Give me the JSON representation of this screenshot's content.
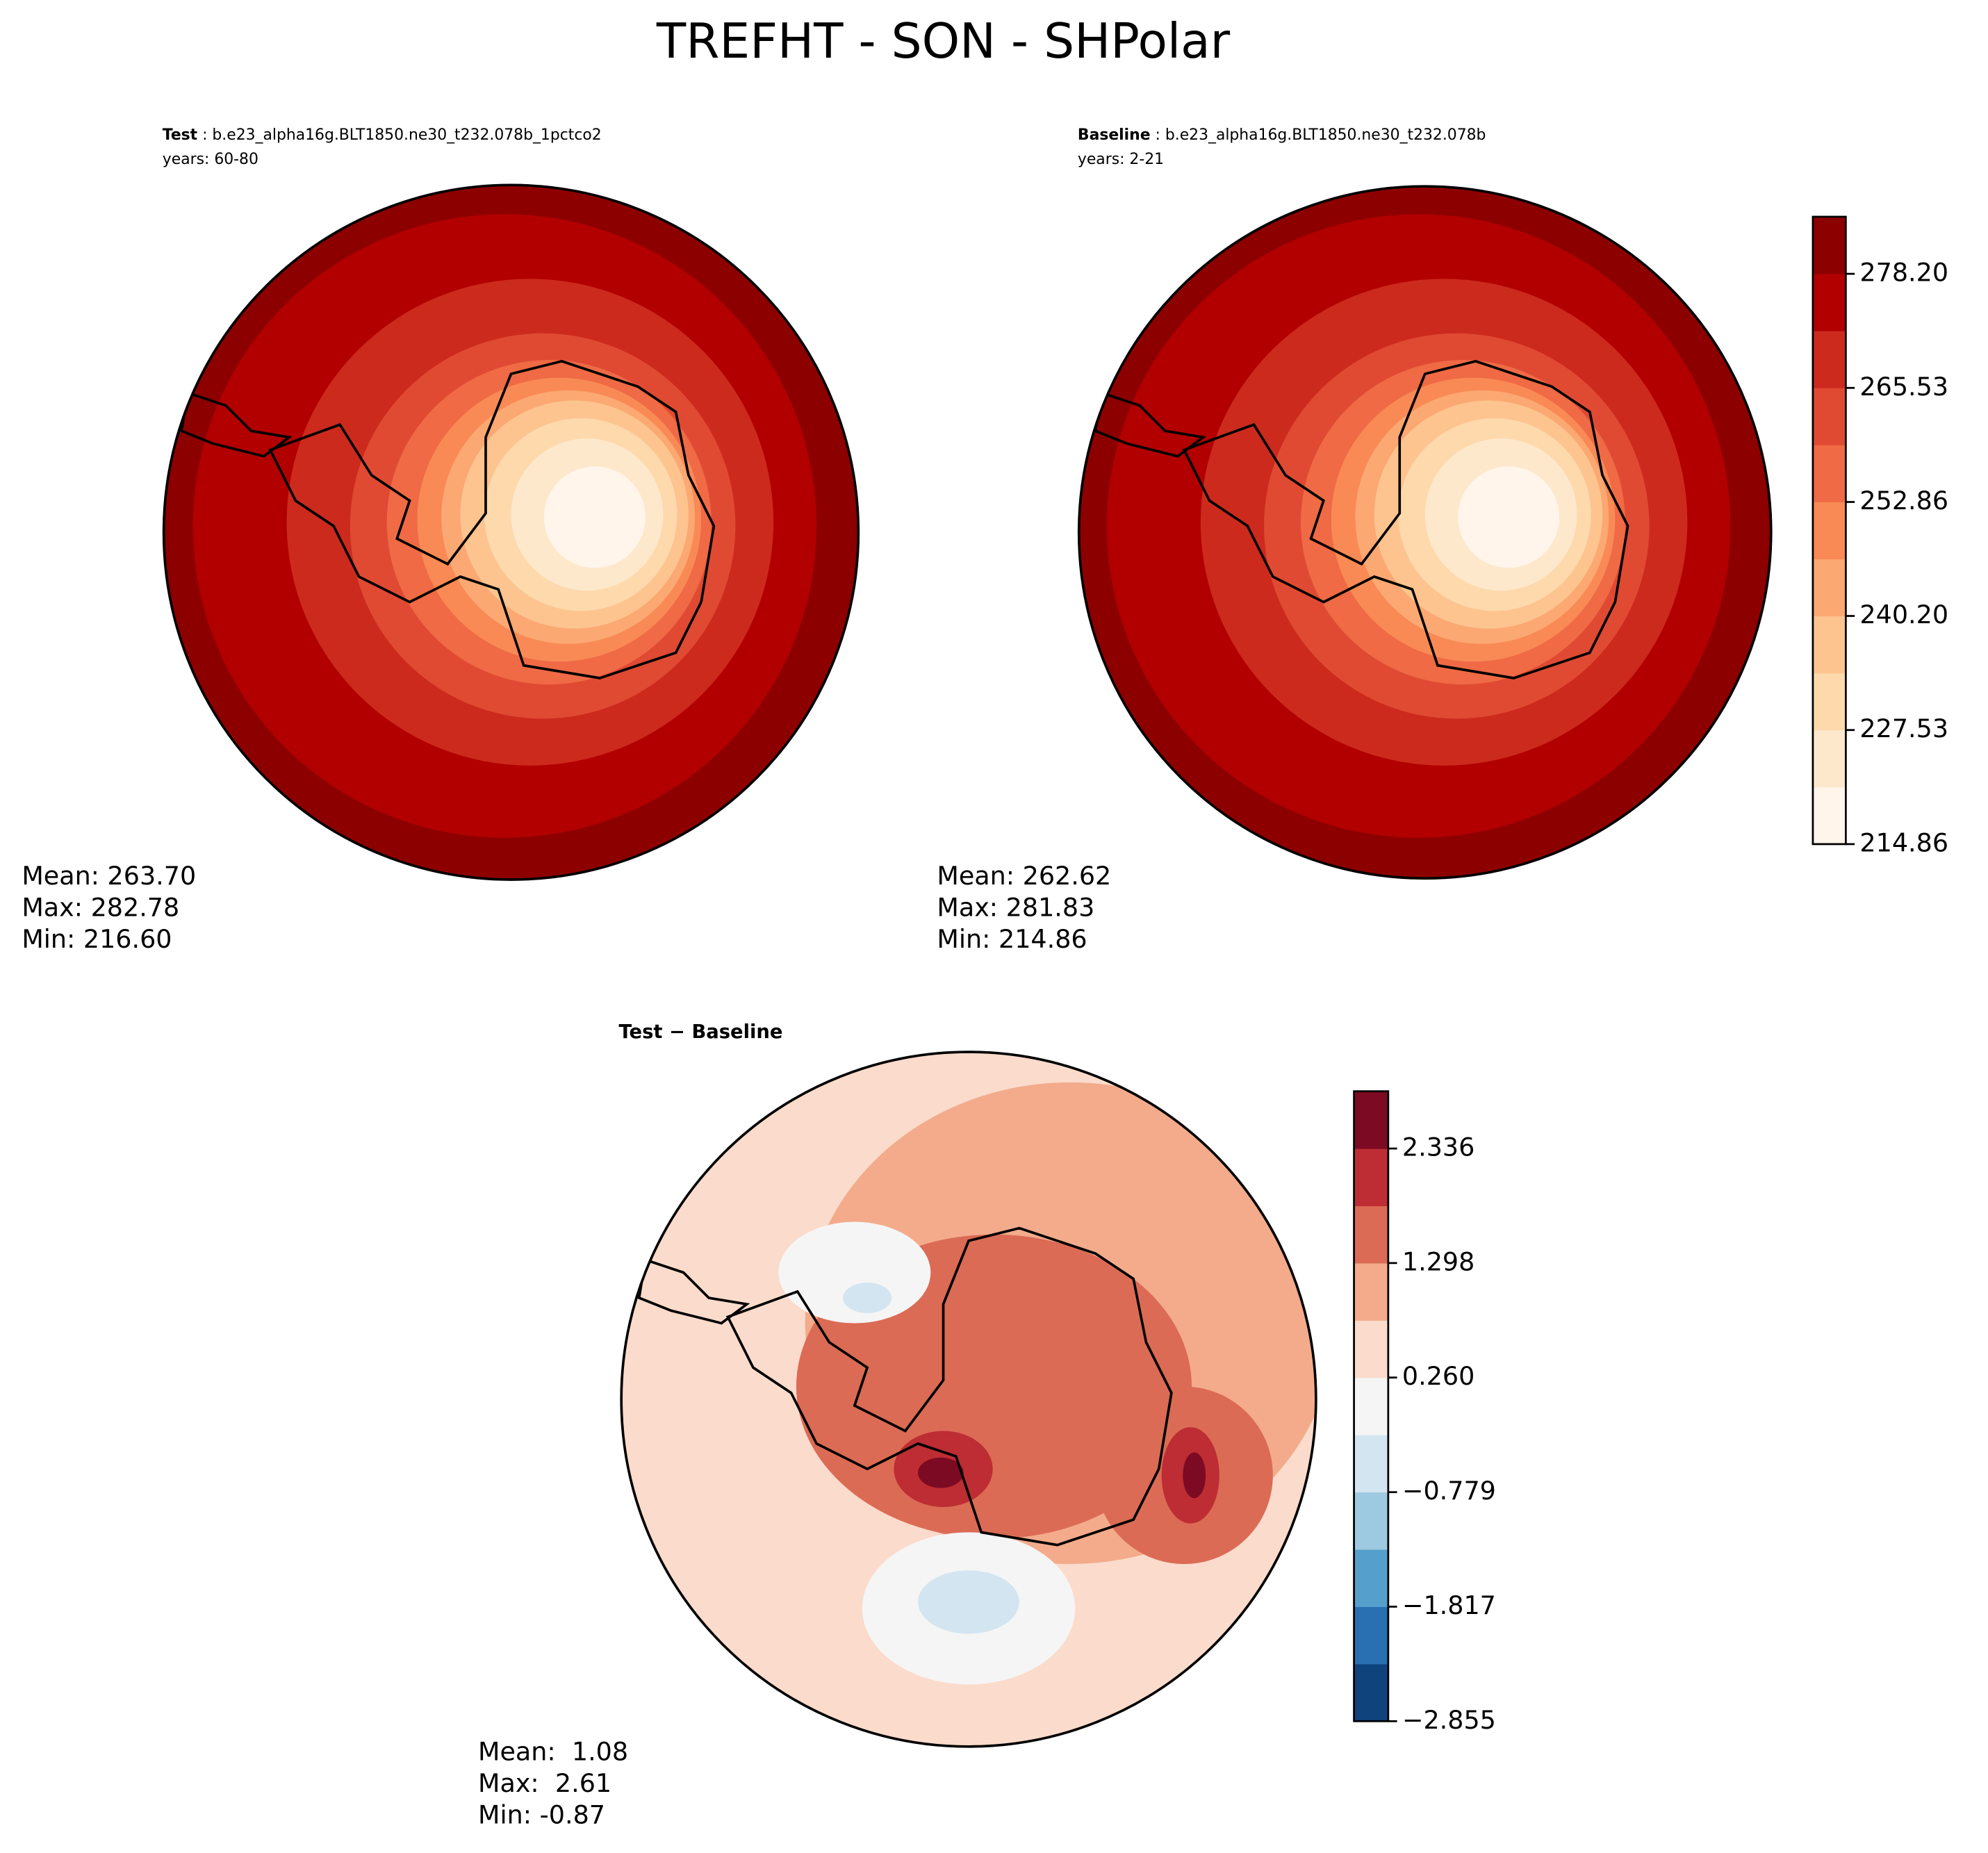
{
  "title": "TREFHT - SON - SHPolar",
  "panels": [
    {
      "label_bold": "Test",
      "label_rest": " : b.e23_alpha16g.BLT1850.ne30_t232.078b_1pctco2",
      "years": "years: 60-80",
      "stats": [
        "Mean: 263.70",
        "Max: 282.78",
        "Min: 216.60"
      ]
    },
    {
      "label_bold": "Baseline",
      "label_rest": " : b.e23_alpha16g.BLT1850.ne30_t232.078b",
      "years": "years: 2-21",
      "stats": [
        "Mean: 262.62",
        "Max: 281.83",
        "Min: 214.86"
      ]
    },
    {
      "label_bold": "Test − Baseline",
      "stats": [
        "Mean:  1.08",
        "Max:  2.61",
        "Min: -0.87"
      ]
    }
  ],
  "colorbars": [
    {
      "lim": [
        214.86,
        284.54
      ],
      "ticks": [
        214.86,
        227.53,
        {
          "value": 240.2,
          "label": "240.20"
        },
        252.86,
        265.53,
        {
          "value": 278.2,
          "label": "278.20"
        }
      ],
      "colors": [
        "#fff5eb",
        "#fee8cc",
        "#fdd9ac",
        "#fdc48f",
        "#fca872",
        "#f98a55",
        "#ef6a45",
        "#e04a33",
        "#cd2a1e",
        "#b20000",
        "#8d0000"
      ]
    },
    {
      "lim": [
        -2.855,
        2.855
      ],
      "ticks": [
        {
          "value": -2.855,
          "label": "−2.855"
        },
        {
          "value": -1.817,
          "label": "−1.817"
        },
        {
          "value": -0.779,
          "label": "−0.779"
        },
        {
          "value": 0.26,
          "label": "0.260"
        },
        1.298,
        2.336
      ],
      "colors": [
        "#0f437c",
        "#2870b1",
        "#559fcc",
        "#9dcae1",
        "#d3e5f0",
        "#f5f5f5",
        "#fbdbcb",
        "#f3ab8b",
        "#db6b55",
        "#bd2d33",
        "#7c0a22"
      ]
    }
  ]
}
